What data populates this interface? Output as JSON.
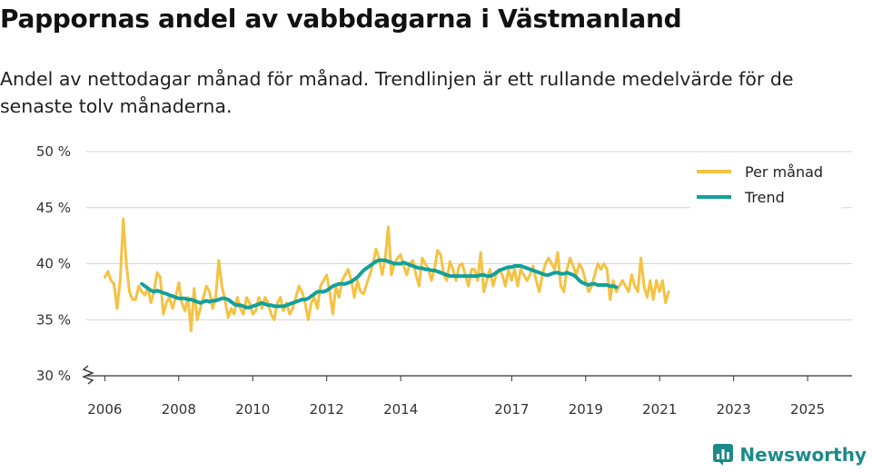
{
  "header": {
    "title": "Pappornas andel av vabbdagarna i Västmanland",
    "subtitle": "Andel av nettodagar månad för månad. Trendlinjen är ett rullande medelvärde för de senaste tolv månaderna."
  },
  "brand": {
    "name": "Newsworthy",
    "icon": "newsworthy-logo-icon",
    "color": "#1c8a8a"
  },
  "colors": {
    "monthly": "#f5c242",
    "trend": "#12a09a",
    "grid": "#d6d6d6",
    "axis": "#333333"
  },
  "chart_data": {
    "type": "line",
    "title": "Pappornas andel av vabbdagarna i Västmanland",
    "ylim": [
      30,
      50
    ],
    "xlim": [
      2005.5,
      2026.2
    ],
    "y_ticks": [
      {
        "value": 50,
        "label": "50 %"
      },
      {
        "value": 45,
        "label": "45 %"
      },
      {
        "value": 40,
        "label": "40 %"
      },
      {
        "value": 35,
        "label": "35 %"
      },
      {
        "value": 30,
        "label": "30 %"
      }
    ],
    "x_ticks": [
      {
        "value": 2006,
        "label": "2006"
      },
      {
        "value": 2008,
        "label": "2008"
      },
      {
        "value": 2010,
        "label": "2010"
      },
      {
        "value": 2012,
        "label": "2012"
      },
      {
        "value": 2014,
        "label": "2014"
      },
      {
        "value": 2017,
        "label": "2017"
      },
      {
        "value": 2019,
        "label": "2019"
      },
      {
        "value": 2021,
        "label": "2021"
      },
      {
        "value": 2023,
        "label": "2023"
      },
      {
        "value": 2025,
        "label": "2025"
      }
    ],
    "legend": {
      "position": "top-right",
      "monthly_label": "Per månad",
      "trend_label": "Trend"
    },
    "series": [
      {
        "name": "Per månad",
        "x_start": 2006.0,
        "step": 0.0833,
        "values": [
          38.8,
          39.3,
          38.5,
          38.2,
          36.0,
          38.5,
          44.0,
          40.0,
          37.5,
          36.8,
          36.8,
          38.0,
          37.5,
          37.2,
          37.8,
          36.5,
          37.6,
          39.2,
          38.8,
          35.5,
          36.5,
          37.0,
          36.0,
          37.0,
          38.3,
          36.5,
          35.8,
          37.0,
          34.0,
          37.8,
          35.0,
          36.0,
          37.0,
          38.0,
          37.5,
          36.0,
          37.0,
          40.3,
          38.0,
          36.8,
          35.2,
          36.0,
          35.5,
          37.0,
          36.0,
          35.5,
          37.0,
          36.5,
          35.5,
          35.8,
          37.0,
          36.0,
          37.0,
          36.5,
          35.5,
          35.0,
          36.5,
          37.0,
          35.8,
          36.5,
          35.5,
          36.0,
          37.0,
          38.0,
          37.5,
          36.5,
          35.0,
          36.5,
          37.0,
          36.0,
          38.0,
          38.5,
          39.0,
          37.5,
          35.5,
          38.0,
          37.0,
          38.5,
          39.0,
          39.5,
          38.5,
          37.0,
          38.5,
          37.5,
          37.3,
          38.2,
          39.0,
          40.0,
          41.3,
          40.5,
          39.0,
          40.5,
          43.3,
          39.0,
          40.0,
          40.5,
          40.8,
          39.8,
          39.0,
          40.0,
          40.3,
          39.0,
          38.0,
          40.5,
          40.0,
          39.5,
          38.5,
          39.5,
          41.2,
          40.8,
          39.0,
          38.5,
          40.2,
          39.5,
          38.5,
          39.8,
          40.0,
          39.0,
          38.0,
          39.5,
          39.5,
          38.5,
          41.0,
          37.5,
          38.5,
          39.5,
          38.0,
          39.0,
          39.5,
          39.0,
          38.0,
          39.5,
          38.5,
          39.5,
          38.0,
          39.5,
          39.0,
          38.5,
          39.0,
          39.8,
          38.5,
          37.5,
          39.0,
          40.0,
          40.5,
          40.0,
          39.5,
          41.0,
          38.0,
          37.5,
          39.5,
          40.5,
          39.8,
          39.0,
          40.0,
          39.5,
          38.5,
          37.5,
          38.0,
          39.0,
          40.0,
          39.5,
          40.0,
          39.5,
          36.8,
          38.5,
          37.5,
          38.0,
          38.5,
          38.0,
          37.5,
          39.0,
          38.0,
          37.5,
          40.5,
          38.0,
          37.0,
          38.5,
          36.8,
          38.5,
          37.5,
          38.5,
          36.5,
          37.5
        ]
      },
      {
        "name": "Trend",
        "x_start": 2007.0,
        "step": 0.0833,
        "values": [
          38.2,
          38.0,
          37.8,
          37.6,
          37.5,
          37.6,
          37.5,
          37.4,
          37.3,
          37.2,
          37.1,
          37.0,
          36.9,
          36.9,
          36.9,
          36.8,
          36.8,
          36.7,
          36.6,
          36.5,
          36.6,
          36.7,
          36.6,
          36.7,
          36.7,
          36.8,
          36.9,
          36.9,
          36.8,
          36.6,
          36.4,
          36.3,
          36.3,
          36.2,
          36.1,
          36.1,
          36.2,
          36.3,
          36.4,
          36.5,
          36.4,
          36.3,
          36.3,
          36.2,
          36.2,
          36.2,
          36.2,
          36.3,
          36.4,
          36.5,
          36.6,
          36.7,
          36.8,
          36.8,
          36.9,
          37.1,
          37.3,
          37.5,
          37.5,
          37.5,
          37.6,
          37.8,
          38.0,
          38.1,
          38.2,
          38.2,
          38.2,
          38.3,
          38.4,
          38.6,
          38.8,
          39.1,
          39.4,
          39.6,
          39.8,
          40.0,
          40.2,
          40.3,
          40.3,
          40.3,
          40.2,
          40.1,
          40.0,
          40.0,
          40.0,
          40.1,
          40.0,
          39.9,
          39.8,
          39.7,
          39.6,
          39.6,
          39.5,
          39.5,
          39.4,
          39.4,
          39.3,
          39.2,
          39.1,
          39.0,
          38.9,
          38.9,
          38.9,
          38.9,
          38.9,
          38.9,
          38.9,
          38.9,
          38.9,
          38.9,
          39.0,
          39.0,
          38.9,
          38.9,
          39.0,
          39.2,
          39.4,
          39.5,
          39.6,
          39.7,
          39.7,
          39.8,
          39.8,
          39.8,
          39.7,
          39.6,
          39.5,
          39.4,
          39.3,
          39.2,
          39.1,
          39.0,
          39.0,
          39.1,
          39.2,
          39.2,
          39.1,
          39.1,
          39.2,
          39.1,
          39.0,
          38.8,
          38.5,
          38.3,
          38.2,
          38.1,
          38.2,
          38.2,
          38.1,
          38.1,
          38.1,
          38.1,
          38.0,
          38.0,
          37.9
        ]
      }
    ]
  }
}
